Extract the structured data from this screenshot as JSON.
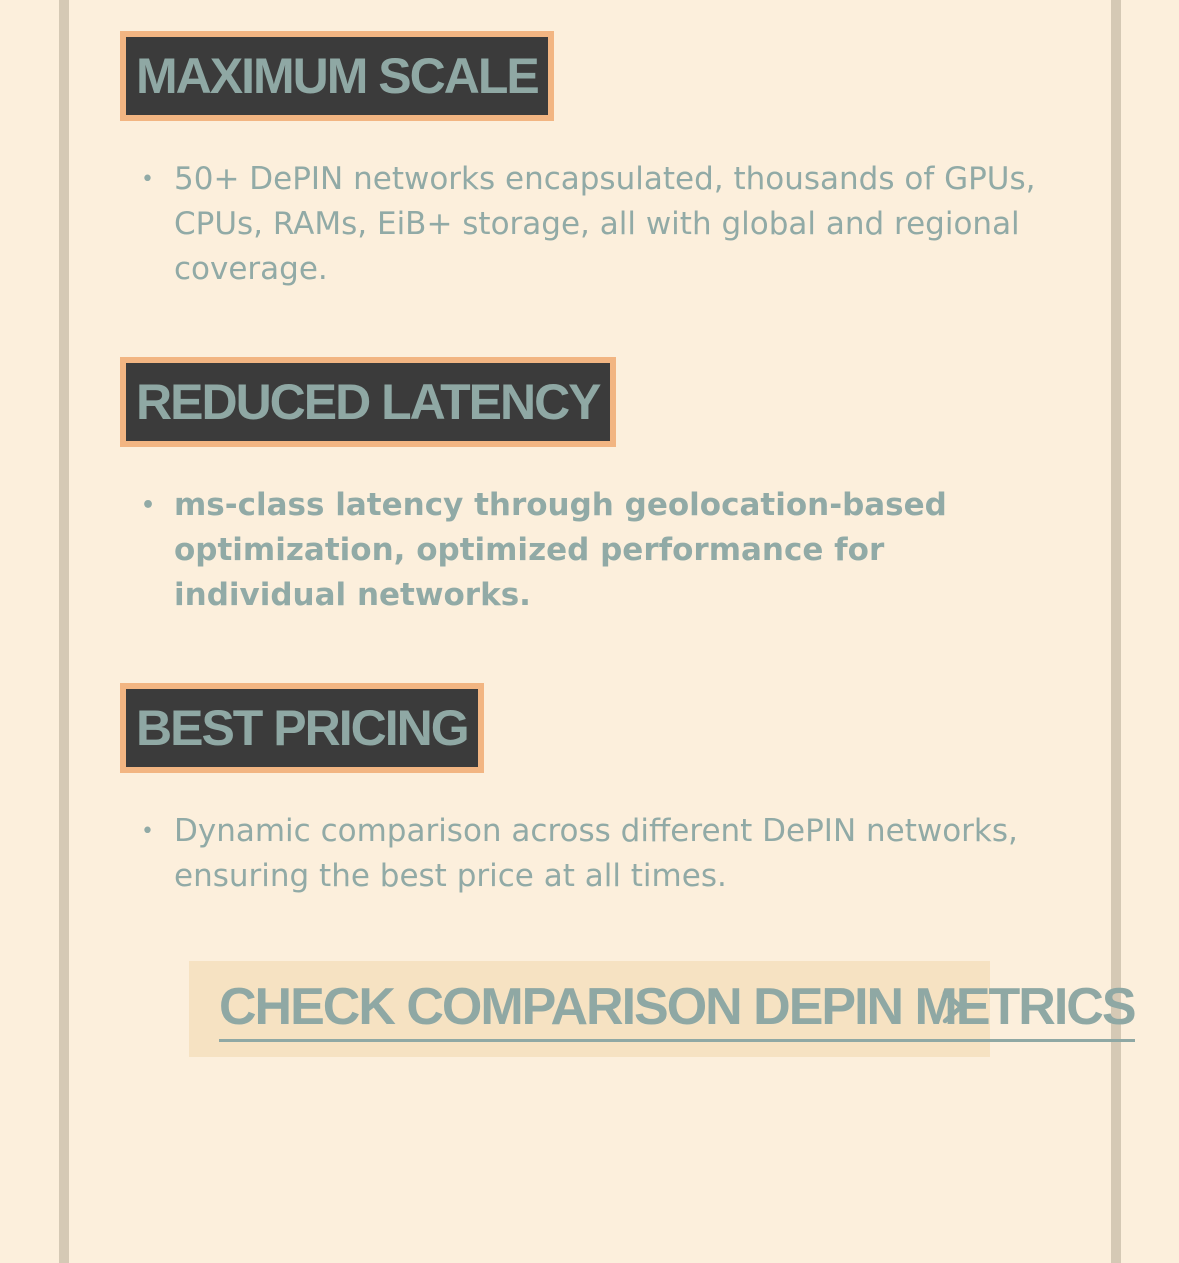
{
  "features": [
    {
      "title": "MAXIMUM SCALE",
      "bullets": [
        "50+ DePIN networks encapsulated, thousands of GPUs, CPUs, RAMs, EiB+ storage, all with global and regional coverage."
      ]
    },
    {
      "title": "REDUCED LATENCY",
      "bullets": [
        "ms-class latency through geolocation-based optimization, optimized performance for individual networks."
      ]
    },
    {
      "title": "BEST PRICING",
      "bullets": [
        "Dynamic comparison across different DePIN networks, ensuring the best price at all times."
      ]
    }
  ],
  "cta": {
    "label": "CHECK COMPARISON DEPIN METRICS",
    "icon": "chevron-right-icon"
  },
  "colors": {
    "background": "#fcefdc",
    "rail": "#d5c9b5",
    "badge_bg": "#3b3b3b",
    "badge_border": "#f2b582",
    "text": "#91aaa6",
    "cta_bg": "#f6e2c2"
  }
}
